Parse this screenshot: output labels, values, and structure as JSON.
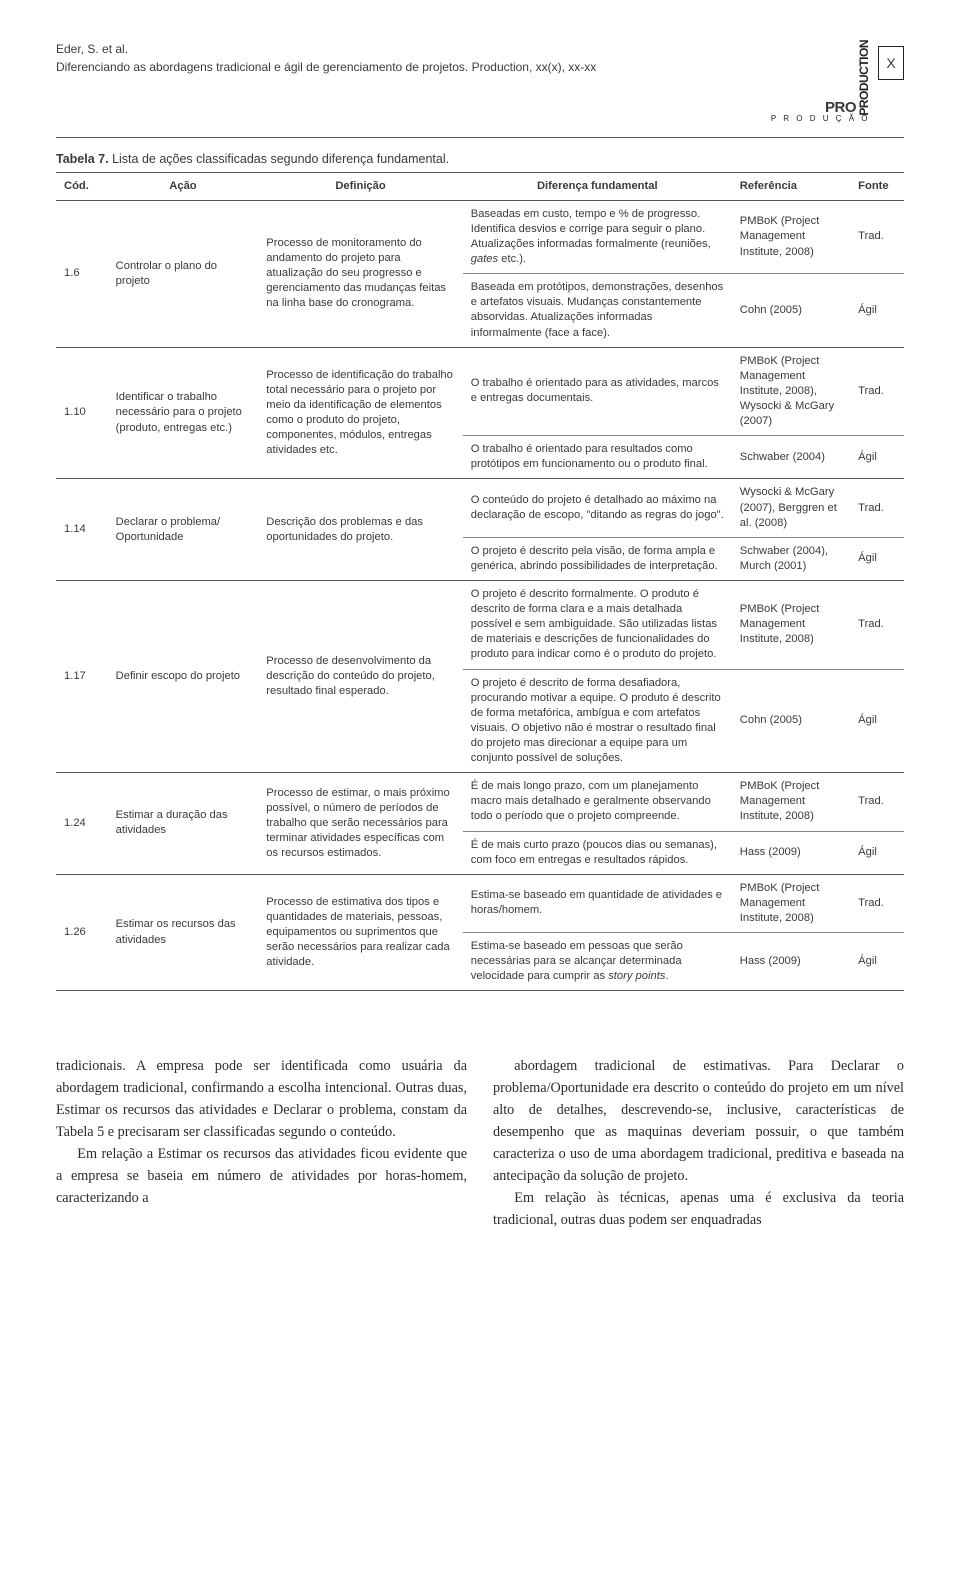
{
  "header": {
    "authors": "Eder, S. et al.",
    "title_ref": "Diferenciando as abordagens tradicional e ágil de gerenciamento de projetos. Production, xx(x), xx-xx",
    "logo_main": "PRODUCTION",
    "logo_sub": "P R O D U Ç Ã O",
    "page_marker": "X"
  },
  "caption": {
    "label": "Tabela 7.",
    "text": "Lista de ações classificadas segundo diferença fundamental."
  },
  "columns": {
    "cod": "Cód.",
    "acao": "Ação",
    "def": "Definição",
    "dif": "Diferença fundamental",
    "ref": "Referência",
    "fonte": "Fonte"
  },
  "rows": [
    {
      "cod": "1.6",
      "acao": "Controlar o plano do projeto",
      "def": "Processo de monitoramento do andamento do projeto para atualização do seu progresso e gerenciamento das mudanças feitas na linha base do cronograma.",
      "variants": [
        {
          "dif": "Baseadas em custo, tempo e % de progresso. Identifica desvios e corrige para seguir o plano. Atualizações informadas formalmente (reuniões, gates etc.).",
          "ref": "PMBoK (Project Management Institute, 2008)",
          "fonte": "Trad."
        },
        {
          "dif": "Baseada em protótipos, demonstrações, desenhos e artefatos visuais. Mudanças constantemente absorvidas. Atualizações informadas informalmente (face a face).",
          "ref": "Cohn (2005)",
          "fonte": "Ágil"
        }
      ]
    },
    {
      "cod": "1.10",
      "acao": "Identificar o trabalho necessário para o projeto (produto, entregas etc.)",
      "def": "Processo de identificação do trabalho total necessário para o projeto por meio da identificação de elementos como o produto do projeto, componentes, módulos, entregas atividades etc.",
      "variants": [
        {
          "dif": "O trabalho é orientado para as atividades, marcos e entregas documentais.",
          "ref": "PMBoK (Project Management Institute, 2008), Wysocki & McGary (2007)",
          "fonte": "Trad."
        },
        {
          "dif": "O trabalho é orientado para resultados como protótipos em funcionamento ou o produto final.",
          "ref": "Schwaber (2004)",
          "fonte": "Ágil"
        }
      ]
    },
    {
      "cod": "1.14",
      "acao": "Declarar o problema/ Oportunidade",
      "def": "Descrição dos problemas e das oportunidades do projeto.",
      "variants": [
        {
          "dif": "O conteúdo do projeto é detalhado ao máximo na declaração de escopo, \"ditando as regras do jogo\".",
          "ref": "Wysocki & McGary (2007), Berggren et al. (2008)",
          "fonte": "Trad."
        },
        {
          "dif": "O projeto é descrito pela visão, de forma ampla e genérica, abrindo possibilidades de interpretação.",
          "ref": "Schwaber (2004), Murch (2001)",
          "fonte": "Ágil"
        }
      ]
    },
    {
      "cod": "1.17",
      "acao": "Definir escopo do projeto",
      "def": "Processo de desenvolvimento da descrição do conteúdo do projeto, resultado final esperado.",
      "variants": [
        {
          "dif": "O projeto é descrito formalmente. O produto é descrito de forma clara e a mais detalhada possível e sem ambiguidade. São utilizadas listas de materiais e descrições de funcionalidades do produto para indicar como é o produto do projeto.",
          "ref": "PMBoK (Project Management Institute, 2008)",
          "fonte": "Trad."
        },
        {
          "dif": "O projeto é descrito de forma desafiadora, procurando motivar a equipe. O produto é descrito de forma metafórica, ambígua e com artefatos visuais. O objetivo não é mostrar o resultado final do projeto mas direcionar a equipe para um conjunto possível de soluções.",
          "ref": "Cohn (2005)",
          "fonte": "Ágil"
        }
      ]
    },
    {
      "cod": "1.24",
      "acao": "Estimar a duração das atividades",
      "def": "Processo de estimar, o mais próximo possível, o número de períodos de trabalho que serão necessários para terminar atividades específicas com os recursos estimados.",
      "variants": [
        {
          "dif": "É de mais longo prazo, com um planejamento macro mais detalhado e geralmente observando todo o período que o projeto compreende.",
          "ref": "PMBoK (Project Management Institute, 2008)",
          "fonte": "Trad."
        },
        {
          "dif": "É de mais curto prazo (poucos dias ou semanas), com foco em entregas e resultados rápidos.",
          "ref": "Hass (2009)",
          "fonte": "Ágil"
        }
      ]
    },
    {
      "cod": "1.26",
      "acao": "Estimar os recursos das atividades",
      "def": "Processo de estimativa dos tipos e quantidades de materiais, pessoas, equipamentos ou suprimentos que serão necessários para realizar cada atividade.",
      "variants": [
        {
          "dif": "Estima-se baseado em quantidade de atividades e horas/homem.",
          "ref": "PMBoK (Project Management Institute, 2008)",
          "fonte": "Trad."
        },
        {
          "dif": "Estima-se baseado em pessoas que serão necessárias para se alcançar determinada velocidade para cumprir as story points.",
          "ref": "Hass (2009)",
          "fonte": "Ágil"
        }
      ]
    }
  ],
  "body": {
    "p1": "tradicionais. A empresa pode ser identificada como usuária da abordagem tradicional, confirmando a escolha intencional. Outras duas, Estimar os recursos das atividades e Declarar o problema, constam da Tabela 5 e precisaram ser classificadas segundo o conteúdo.",
    "p2": "Em relação a Estimar os recursos das atividades ficou evidente que a empresa se baseia em número de atividades por horas-homem, caracterizando a",
    "p3": "abordagem tradicional de estimativas. Para Declarar o problema/Oportunidade era descrito o conteúdo do projeto em um nível alto de detalhes, descrevendo-se, inclusive, características de desempenho que as maquinas deveriam possuir, o que também caracteriza o uso de uma abordagem tradicional, preditiva e baseada na antecipação da solução de projeto.",
    "p4": "Em relação às técnicas, apenas uma é exclusiva da teoria tradicional, outras duas podem ser enquadradas"
  }
}
